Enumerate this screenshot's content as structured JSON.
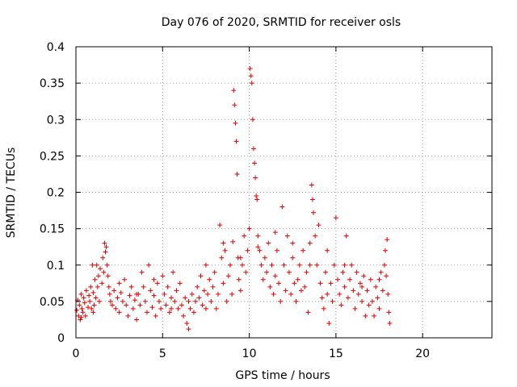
{
  "chart_data": {
    "type": "scatter",
    "title": "Day 076 of 2020, SRMTID for receiver osls",
    "xlabel": "GPS time / hours",
    "ylabel": "SRMTID / TECUs",
    "xlim": [
      0,
      24
    ],
    "ylim": [
      0,
      0.4
    ],
    "x_ticks": [
      0,
      5,
      10,
      15,
      20
    ],
    "x_tick_labels": [
      "0",
      "5",
      "10",
      "15",
      "20"
    ],
    "y_ticks": [
      0,
      0.05,
      0.1,
      0.15,
      0.2,
      0.25,
      0.3,
      0.35,
      0.4
    ],
    "y_tick_labels": [
      "0",
      "0.05",
      "0.1",
      "0.15",
      "0.2",
      "0.25",
      "0.3",
      "0.35",
      "0.4"
    ],
    "grid": true,
    "marker": "+",
    "marker_color": "#e00000",
    "series": [
      {
        "name": "SRMTID",
        "points": [
          [
            0.05,
            0.038
          ],
          [
            0.1,
            0.052
          ],
          [
            0.15,
            0.03
          ],
          [
            0.2,
            0.045
          ],
          [
            0.25,
            0.025
          ],
          [
            0.3,
            0.06
          ],
          [
            0.35,
            0.04
          ],
          [
            0.4,
            0.035
          ],
          [
            0.45,
            0.055
          ],
          [
            0.5,
            0.048
          ],
          [
            0.55,
            0.03
          ],
          [
            0.6,
            0.065
          ],
          [
            0.7,
            0.042
          ],
          [
            0.75,
            0.058
          ],
          [
            0.8,
            0.05
          ],
          [
            0.85,
            0.07
          ],
          [
            0.9,
            0.04
          ],
          [
            0.95,
            0.1
          ],
          [
            1.0,
            0.062
          ],
          [
            1.05,
            0.045
          ],
          [
            1.1,
            0.08
          ],
          [
            1.15,
            0.055
          ],
          [
            1.2,
            0.1
          ],
          [
            1.25,
            0.07
          ],
          [
            1.3,
            0.085
          ],
          [
            1.35,
            0.05
          ],
          [
            1.4,
            0.095
          ],
          [
            1.5,
            0.075
          ],
          [
            1.55,
            0.11
          ],
          [
            1.6,
            0.09
          ],
          [
            1.65,
            0.13
          ],
          [
            1.7,
            0.118
          ],
          [
            1.75,
            0.125
          ],
          [
            1.8,
            0.1
          ],
          [
            1.85,
            0.085
          ],
          [
            1.9,
            0.07
          ],
          [
            1.95,
            0.06
          ],
          [
            2.0,
            0.05
          ],
          [
            2.1,
            0.045
          ],
          [
            2.2,
            0.065
          ],
          [
            2.3,
            0.04
          ],
          [
            2.4,
            0.055
          ],
          [
            2.5,
            0.035
          ],
          [
            2.6,
            0.062
          ],
          [
            2.7,
            0.05
          ],
          [
            2.8,
            0.08
          ],
          [
            2.9,
            0.045
          ],
          [
            3.0,
            0.03
          ],
          [
            3.1,
            0.058
          ],
          [
            3.2,
            0.07
          ],
          [
            3.3,
            0.04
          ],
          [
            3.4,
            0.052
          ],
          [
            3.5,
            0.025
          ],
          [
            3.6,
            0.06
          ],
          [
            3.7,
            0.045
          ],
          [
            3.8,
            0.09
          ],
          [
            3.9,
            0.07
          ],
          [
            4.0,
            0.05
          ],
          [
            4.1,
            0.035
          ],
          [
            4.2,
            0.1
          ],
          [
            4.3,
            0.065
          ],
          [
            4.4,
            0.042
          ],
          [
            4.5,
            0.058
          ],
          [
            4.6,
            0.03
          ],
          [
            4.7,
            0.075
          ],
          [
            4.8,
            0.05
          ],
          [
            4.9,
            0.04
          ],
          [
            5.0,
            0.085
          ],
          [
            5.1,
            0.06
          ],
          [
            5.2,
            0.045
          ],
          [
            5.3,
            0.07
          ],
          [
            5.4,
            0.035
          ],
          [
            5.5,
            0.055
          ],
          [
            5.6,
            0.09
          ],
          [
            5.7,
            0.05
          ],
          [
            5.8,
            0.065
          ],
          [
            5.9,
            0.04
          ],
          [
            6.0,
            0.075
          ],
          [
            6.1,
            0.045
          ],
          [
            6.2,
            0.03
          ],
          [
            6.3,
            0.055
          ],
          [
            6.4,
            0.02
          ],
          [
            6.5,
            0.012
          ],
          [
            6.6,
            0.04
          ],
          [
            6.7,
            0.06
          ],
          [
            6.8,
            0.035
          ],
          [
            6.9,
            0.05
          ],
          [
            7.0,
            0.07
          ],
          [
            7.1,
            0.055
          ],
          [
            7.2,
            0.085
          ],
          [
            7.3,
            0.045
          ],
          [
            7.4,
            0.065
          ],
          [
            7.5,
            0.1
          ],
          [
            7.6,
            0.06
          ],
          [
            7.7,
            0.08
          ],
          [
            7.8,
            0.05
          ],
          [
            7.9,
            0.07
          ],
          [
            8.0,
            0.09
          ],
          [
            8.1,
            0.04
          ],
          [
            8.2,
            0.06
          ],
          [
            8.3,
            0.155
          ],
          [
            8.4,
            0.11
          ],
          [
            8.5,
            0.075
          ],
          [
            8.6,
            0.12
          ],
          [
            8.7,
            0.05
          ],
          [
            8.8,
            0.085
          ],
          [
            8.9,
            0.1
          ],
          [
            9.0,
            0.06
          ],
          [
            9.05,
            0.132
          ],
          [
            9.1,
            0.34
          ],
          [
            9.15,
            0.32
          ],
          [
            9.2,
            0.295
          ],
          [
            9.25,
            0.27
          ],
          [
            9.3,
            0.225
          ],
          [
            9.35,
            0.11
          ],
          [
            9.4,
            0.08
          ],
          [
            9.5,
            0.065
          ],
          [
            9.6,
            0.1
          ],
          [
            9.7,
            0.14
          ],
          [
            9.8,
            0.09
          ],
          [
            9.9,
            0.12
          ],
          [
            10.0,
            0.15
          ],
          [
            10.05,
            0.37
          ],
          [
            10.1,
            0.36
          ],
          [
            10.15,
            0.35
          ],
          [
            10.2,
            0.3
          ],
          [
            10.25,
            0.26
          ],
          [
            10.3,
            0.24
          ],
          [
            10.35,
            0.22
          ],
          [
            10.4,
            0.195
          ],
          [
            10.45,
            0.19
          ],
          [
            10.5,
            0.14
          ],
          [
            10.6,
            0.12
          ],
          [
            10.7,
            0.1
          ],
          [
            10.8,
            0.08
          ],
          [
            10.9,
            0.11
          ],
          [
            11.0,
            0.09
          ],
          [
            11.1,
            0.13
          ],
          [
            11.2,
            0.07
          ],
          [
            11.3,
            0.1
          ],
          [
            11.4,
            0.06
          ],
          [
            11.5,
            0.085
          ],
          [
            11.6,
            0.12
          ],
          [
            11.7,
            0.075
          ],
          [
            11.8,
            0.05
          ],
          [
            11.9,
            0.18
          ],
          [
            12.0,
            0.1
          ],
          [
            12.1,
            0.065
          ],
          [
            12.2,
            0.14
          ],
          [
            12.3,
            0.09
          ],
          [
            12.4,
            0.06
          ],
          [
            12.5,
            0.11
          ],
          [
            12.6,
            0.075
          ],
          [
            12.7,
            0.05
          ],
          [
            12.8,
            0.08
          ],
          [
            12.9,
            0.1
          ],
          [
            13.0,
            0.065
          ],
          [
            13.1,
            0.12
          ],
          [
            13.2,
            0.07
          ],
          [
            13.3,
            0.09
          ],
          [
            13.4,
            0.035
          ],
          [
            13.5,
            0.13
          ],
          [
            13.6,
            0.21
          ],
          [
            13.65,
            0.19
          ],
          [
            13.7,
            0.172
          ],
          [
            13.8,
            0.14
          ],
          [
            13.9,
            0.1
          ],
          [
            14.0,
            0.155
          ],
          [
            14.1,
            0.075
          ],
          [
            14.2,
            0.055
          ],
          [
            14.3,
            0.04
          ],
          [
            14.4,
            0.09
          ],
          [
            14.5,
            0.06
          ],
          [
            14.6,
            0.02
          ],
          [
            14.7,
            0.075
          ],
          [
            14.8,
            0.05
          ],
          [
            14.9,
            0.1
          ],
          [
            15.0,
            0.165
          ],
          [
            15.1,
            0.08
          ],
          [
            15.2,
            0.06
          ],
          [
            15.3,
            0.045
          ],
          [
            15.4,
            0.09
          ],
          [
            15.5,
            0.07
          ],
          [
            15.6,
            0.14
          ],
          [
            15.7,
            0.055
          ],
          [
            15.8,
            0.08
          ],
          [
            15.9,
            0.1
          ],
          [
            16.0,
            0.065
          ],
          [
            16.1,
            0.04
          ],
          [
            16.2,
            0.09
          ],
          [
            16.3,
            0.06
          ],
          [
            16.4,
            0.075
          ],
          [
            16.5,
            0.05
          ],
          [
            16.6,
            0.085
          ],
          [
            16.7,
            0.03
          ],
          [
            16.8,
            0.065
          ],
          [
            16.9,
            0.045
          ],
          [
            17.0,
            0.08
          ],
          [
            17.1,
            0.05
          ],
          [
            17.2,
            0.03
          ],
          [
            17.3,
            0.07
          ],
          [
            17.4,
            0.055
          ],
          [
            17.5,
            0.04
          ],
          [
            17.6,
            0.09
          ],
          [
            17.7,
            0.065
          ],
          [
            17.8,
            0.1
          ],
          [
            17.85,
            0.12
          ],
          [
            17.9,
            0.085
          ],
          [
            17.95,
            0.135
          ],
          [
            18.0,
            0.06
          ],
          [
            18.05,
            0.035
          ],
          [
            18.1,
            0.02
          ],
          [
            0.3,
            0.028
          ],
          [
            1.0,
            0.035
          ],
          [
            2.5,
            0.075
          ],
          [
            3.5,
            0.06
          ],
          [
            4.5,
            0.08
          ],
          [
            5.5,
            0.04
          ],
          [
            6.5,
            0.05
          ],
          [
            7.5,
            0.04
          ],
          [
            8.5,
            0.13
          ],
          [
            9.5,
            0.11
          ],
          [
            10.5,
            0.125
          ],
          [
            11.5,
            0.145
          ],
          [
            12.5,
            0.13
          ],
          [
            13.5,
            0.1
          ],
          [
            14.5,
            0.12
          ],
          [
            15.5,
            0.1
          ],
          [
            16.5,
            0.07
          ],
          [
            17.5,
            0.08
          ]
        ]
      }
    ]
  }
}
